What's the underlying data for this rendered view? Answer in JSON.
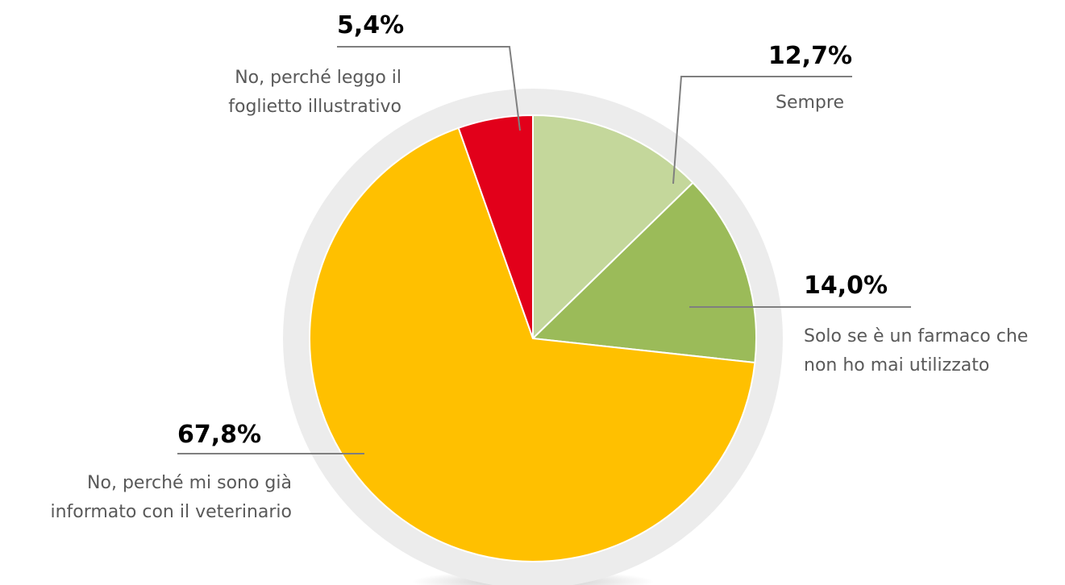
{
  "chart_data": {
    "type": "pie",
    "categories": [
      "Sempre",
      "Solo se è un farmaco che non ho mai utilizzato",
      "No, perché mi sono già informato con il veterinario",
      "No, perché leggo il foglietto illustrativo"
    ],
    "values": [
      12.7,
      14.0,
      67.8,
      5.4
    ],
    "value_labels": [
      "12,7%",
      "14,0%",
      "67,8%",
      "5,4%"
    ],
    "colors": [
      "#c4d79b",
      "#9bbb59",
      "#ffc000",
      "#e2001a"
    ]
  }
}
